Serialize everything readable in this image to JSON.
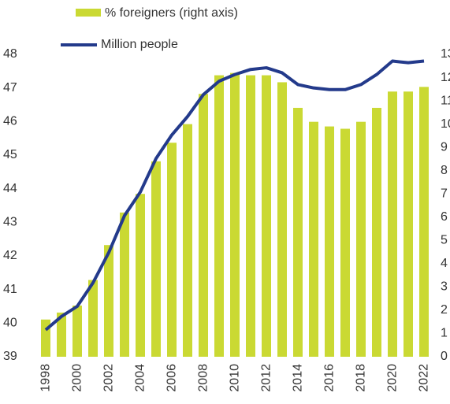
{
  "chart_data": {
    "type": "bar_line",
    "categories": [
      "1998",
      null,
      "2000",
      null,
      "2002",
      null,
      "2004",
      null,
      "2006",
      null,
      "2008",
      null,
      "2010",
      null,
      "2012",
      null,
      "2014",
      null,
      "2016",
      null,
      "2018",
      null,
      "2020",
      null,
      "2022"
    ],
    "series": [
      {
        "name": "% foreigners (right axis)",
        "type": "bar",
        "axis": "y2",
        "color": "#cad933",
        "values": [
          1.6,
          1.9,
          2.2,
          3.3,
          4.8,
          6.2,
          7.0,
          8.4,
          9.2,
          10.0,
          11.3,
          12.1,
          12.2,
          12.1,
          12.1,
          11.8,
          10.7,
          10.1,
          9.9,
          9.8,
          10.1,
          10.7,
          11.4,
          11.4,
          11.6
        ]
      },
      {
        "name": "Million people",
        "type": "line",
        "axis": "y",
        "color": "#233a8b",
        "values": [
          39.8,
          40.2,
          40.5,
          41.2,
          42.1,
          43.2,
          43.9,
          44.9,
          45.6,
          46.15,
          46.8,
          47.2,
          47.4,
          47.55,
          47.6,
          47.45,
          47.1,
          47.0,
          46.95,
          46.95,
          47.1,
          47.4,
          47.8,
          47.75,
          47.8
        ]
      }
    ],
    "ylim": [
      39,
      48
    ],
    "yticks": [
      39,
      40,
      41,
      42,
      43,
      44,
      45,
      46,
      47,
      48
    ],
    "y2lim": [
      0,
      13
    ],
    "y2ticks": [
      0,
      1,
      2,
      3,
      4,
      5,
      6,
      7,
      8,
      9,
      10,
      11,
      12,
      13
    ],
    "grid": false
  }
}
